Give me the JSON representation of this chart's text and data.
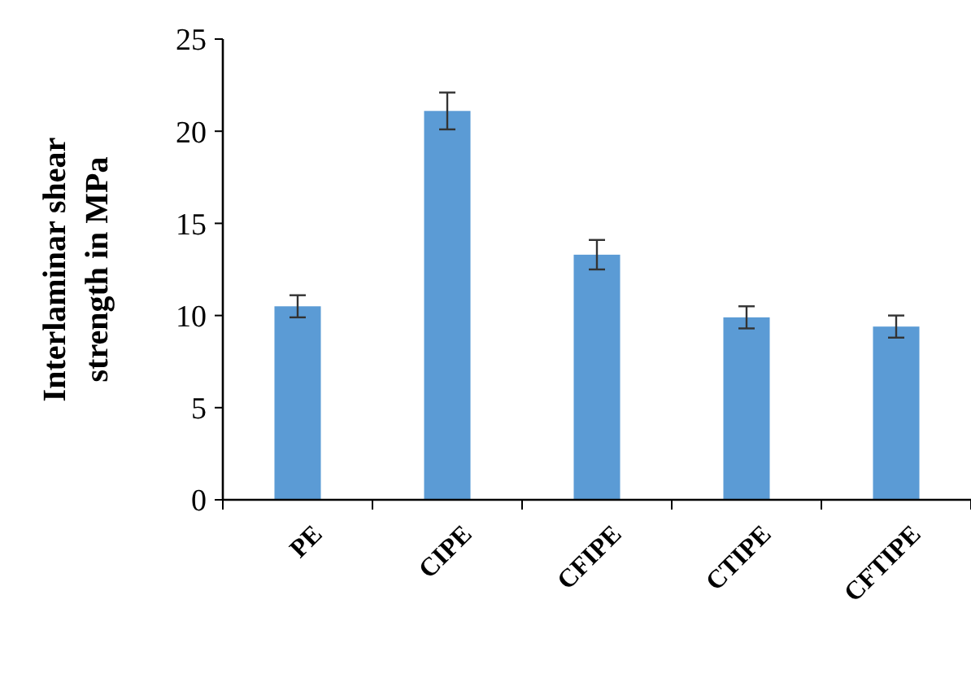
{
  "chart_data": {
    "type": "bar",
    "ylabel": "Interlaminar shear\nstrength in MPa",
    "categories": [
      "PE",
      "CIPE",
      "CFIPE",
      "CTIPE",
      "CFTIPE"
    ],
    "values": [
      10.5,
      21.1,
      13.3,
      9.9,
      9.4
    ],
    "errors": [
      0.6,
      1.0,
      0.8,
      0.6,
      0.6
    ],
    "color": "#5b9bd5",
    "ylim": [
      0,
      25
    ],
    "yticks": [
      0,
      5,
      10,
      15,
      20,
      25
    ],
    "grid": false
  }
}
